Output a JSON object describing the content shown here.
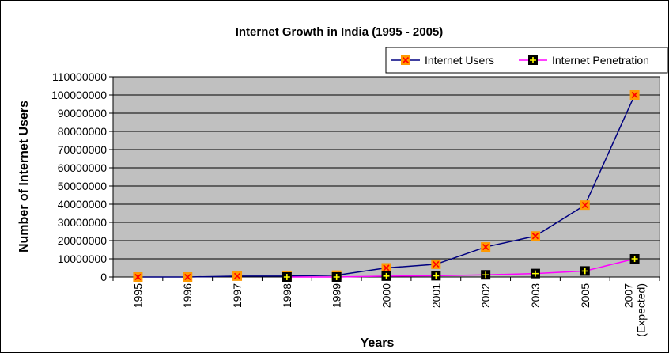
{
  "chart_data": {
    "type": "line",
    "title": "Internet Growth in India (1995 - 2005)",
    "xlabel": "Years",
    "ylabel": "Number of Internet Users",
    "categories": [
      [
        "1995"
      ],
      [
        "1996"
      ],
      [
        "1997"
      ],
      [
        "1998"
      ],
      [
        "1999"
      ],
      [
        "2000"
      ],
      [
        "2001"
      ],
      [
        "2002"
      ],
      [
        "2003"
      ],
      [
        "2005"
      ],
      [
        "2007",
        "(Expected)"
      ]
    ],
    "ylim": [
      0,
      110000000
    ],
    "ytick_step": 10000000,
    "y_ticks": [
      "0",
      "10000000",
      "20000000",
      "30000000",
      "40000000",
      "50000000",
      "60000000",
      "70000000",
      "80000000",
      "90000000",
      "100000000",
      "110000000"
    ],
    "grid": true,
    "plot_background": "#c0c0c0",
    "legend_position": "top-right",
    "series": [
      {
        "name": "Internet Users",
        "color": "#000080",
        "marker": "x-on-orange-square",
        "marker_fill": "#ff9900",
        "marker_glyph_color": "#ff0000",
        "values": [
          0,
          0,
          500000,
          500000,
          1000000,
          5000000,
          7000000,
          16500000,
          22500000,
          39500000,
          100000000
        ]
      },
      {
        "name": "Internet Penetration",
        "color": "#ff00ff",
        "marker": "plus-on-black-square",
        "marker_fill": "#000000",
        "marker_glyph_color": "#ffff00",
        "values": [
          null,
          null,
          null,
          0,
          0,
          500000,
          700000,
          1200000,
          1900000,
          3300000,
          10000000
        ]
      }
    ]
  }
}
